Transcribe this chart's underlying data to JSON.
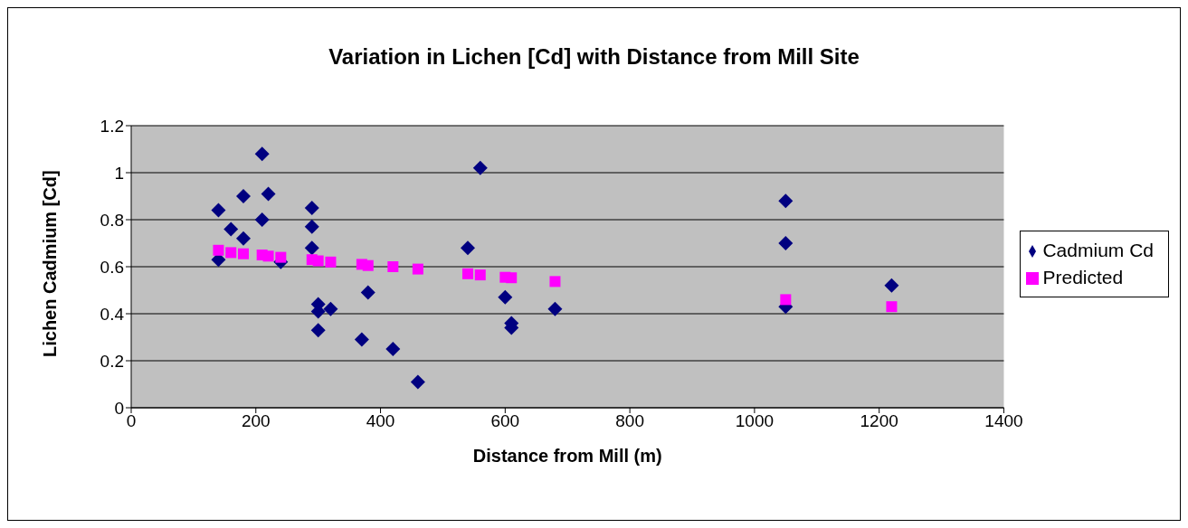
{
  "chart_data": {
    "type": "scatter",
    "title": "Variation in Lichen [Cd] with Distance from Mill Site",
    "xlabel": "Distance from Mill (m)",
    "ylabel": "Lichen Cadmium [Cd]",
    "xlim": [
      0,
      1400
    ],
    "xticks": [
      0,
      200,
      400,
      600,
      800,
      1000,
      1200,
      1400
    ],
    "ylim": [
      0,
      1.2
    ],
    "yticks": [
      0,
      0.2,
      0.4,
      0.6,
      0.8,
      1,
      1.2
    ],
    "grid": "y",
    "legend": "right",
    "series": [
      {
        "name": "Cadmium Cd",
        "color": "#000080",
        "marker": "diamond",
        "x": [
          140,
          140,
          160,
          180,
          180,
          210,
          210,
          220,
          240,
          290,
          290,
          290,
          300,
          300,
          300,
          320,
          370,
          380,
          420,
          460,
          540,
          560,
          600,
          610,
          610,
          680,
          1050,
          1050,
          1050,
          1220
        ],
        "values": [
          0.84,
          0.63,
          0.76,
          0.9,
          0.72,
          1.08,
          0.8,
          0.91,
          0.62,
          0.85,
          0.77,
          0.68,
          0.44,
          0.41,
          0.33,
          0.42,
          0.29,
          0.49,
          0.25,
          0.11,
          0.68,
          1.02,
          0.47,
          0.36,
          0.34,
          0.42,
          0.88,
          0.7,
          0.43,
          0.52
        ]
      },
      {
        "name": "Predicted",
        "color": "#ff00ff",
        "marker": "square",
        "x": [
          140,
          160,
          180,
          210,
          220,
          240,
          290,
          300,
          320,
          370,
          380,
          420,
          460,
          540,
          560,
          600,
          610,
          680,
          1050,
          1220
        ],
        "values": [
          0.67,
          0.66,
          0.655,
          0.65,
          0.645,
          0.64,
          0.63,
          0.625,
          0.62,
          0.61,
          0.605,
          0.6,
          0.59,
          0.57,
          0.565,
          0.555,
          0.553,
          0.537,
          0.46,
          0.43
        ]
      }
    ]
  }
}
